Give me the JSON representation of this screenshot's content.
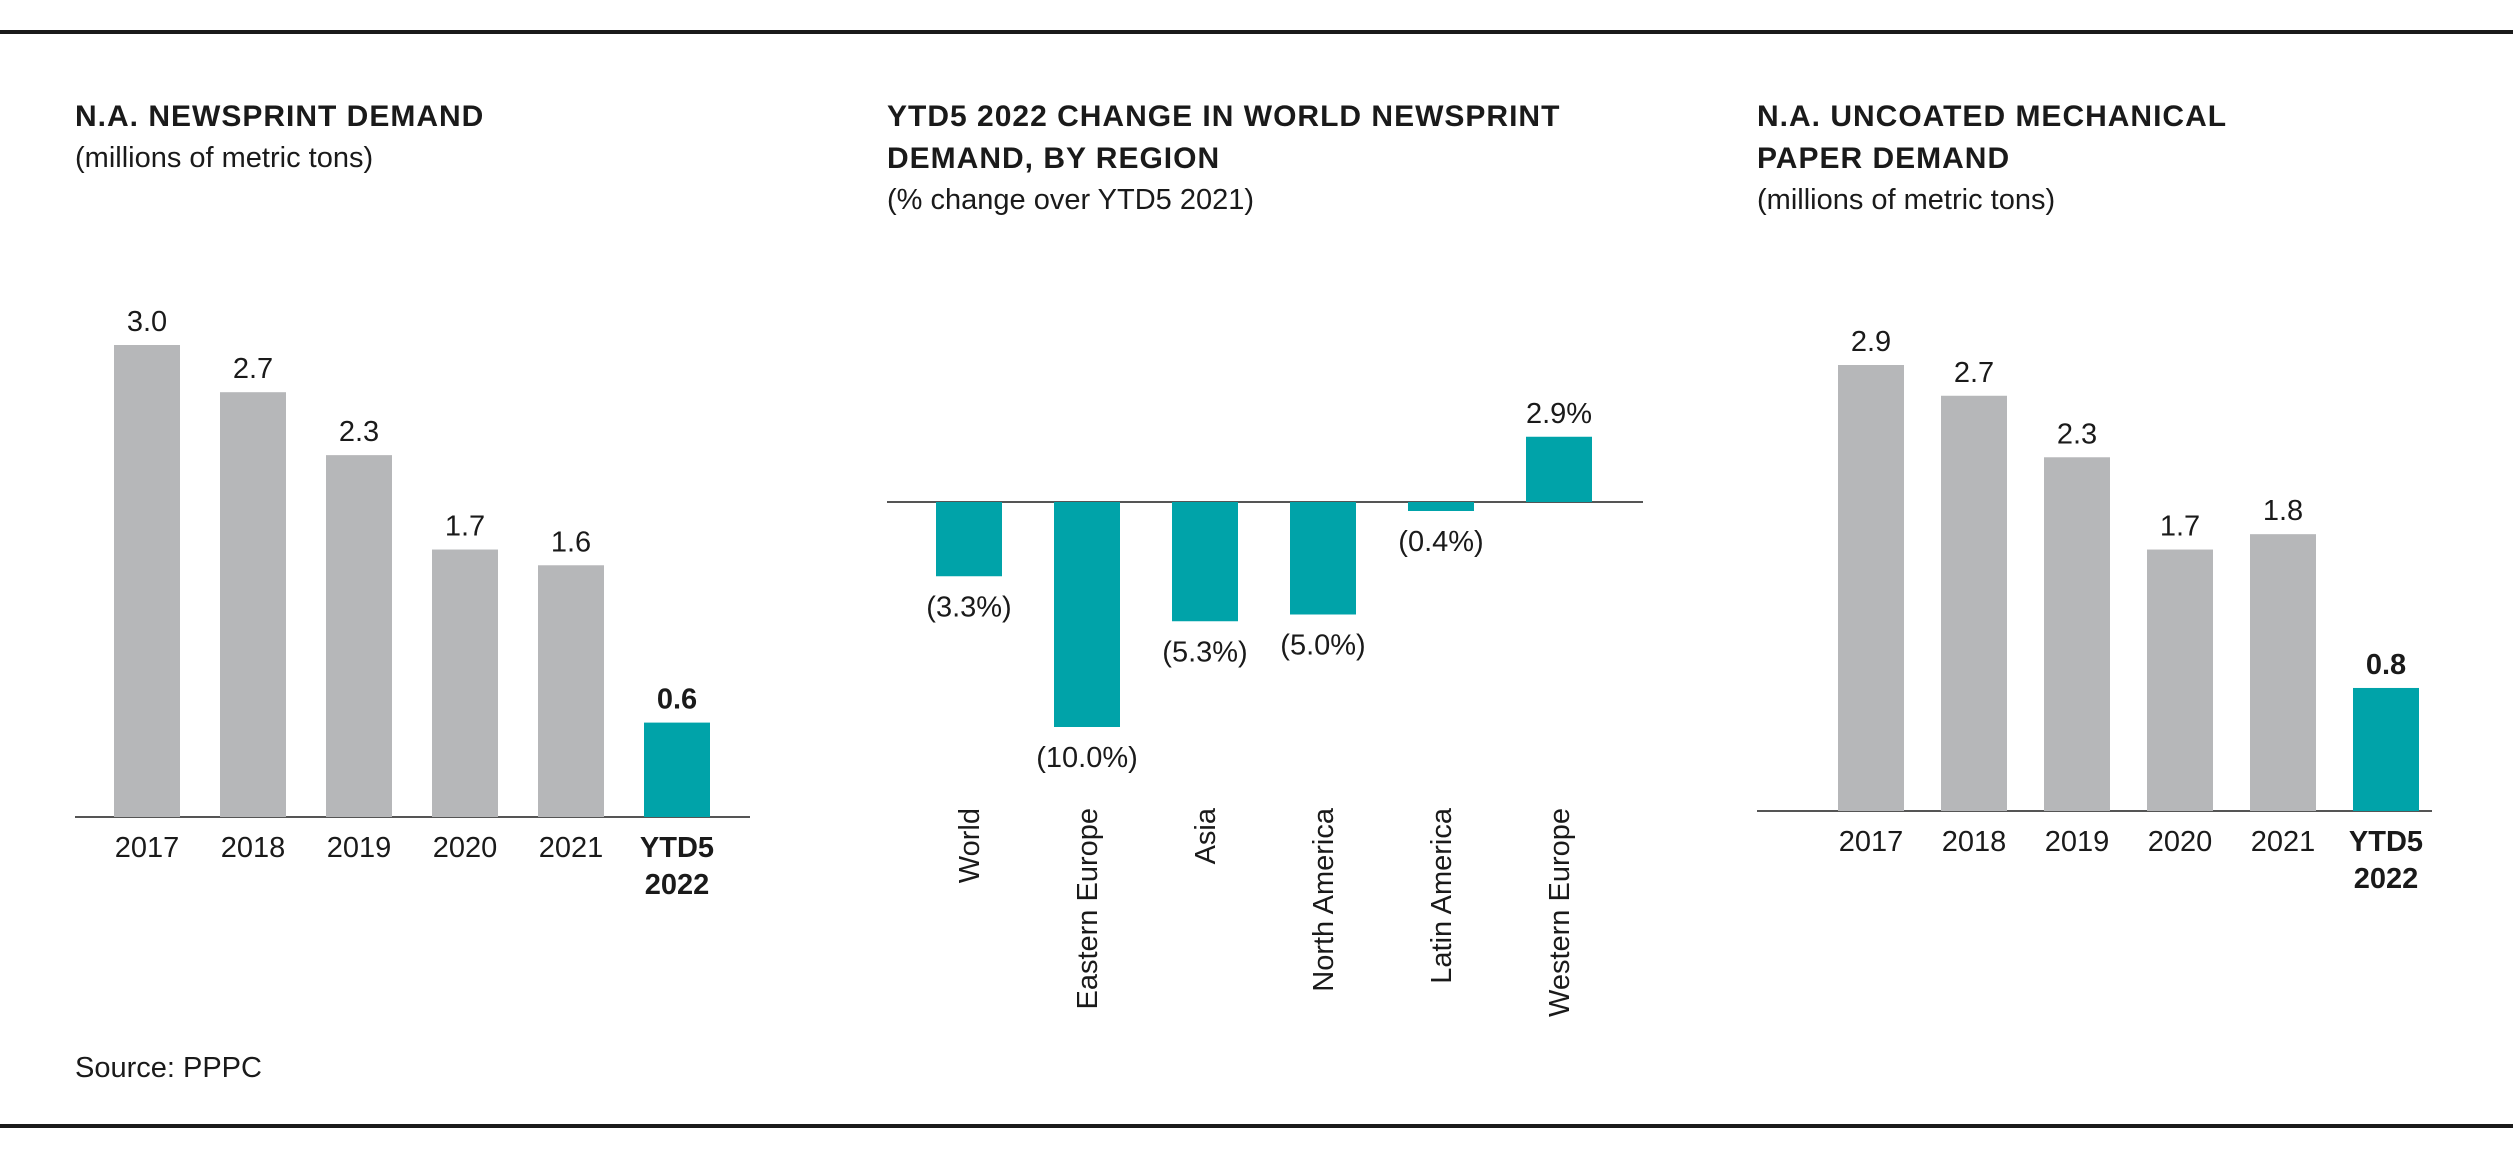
{
  "source": "Source: PPPC",
  "colors": {
    "gray": "#b6b7b9",
    "teal": "#00a3a9",
    "axis": "#555555"
  },
  "chart_data": [
    {
      "type": "bar",
      "title_lines": [
        "N.A. NEWSPRINT DEMAND"
      ],
      "subtitle": "(millions of metric tons)",
      "categories": [
        [
          "2017"
        ],
        [
          "2018"
        ],
        [
          "2019"
        ],
        [
          "2020"
        ],
        [
          "2021"
        ],
        [
          "YTD5",
          "2022"
        ]
      ],
      "values": [
        3.0,
        2.7,
        2.3,
        1.7,
        1.6,
        0.6
      ],
      "labels": [
        "3.0",
        "2.7",
        "2.3",
        "1.7",
        "1.6",
        "0.6"
      ],
      "highlight_index": 5,
      "ylim": [
        0,
        3.0
      ]
    },
    {
      "type": "bar",
      "title_lines": [
        "YTD5 2022 CHANGE IN WORLD NEWSPRINT",
        "DEMAND, BY REGION"
      ],
      "subtitle": "(% change over YTD5 2021)",
      "categories": [
        "World",
        "Eastern Europe",
        "Asia",
        "North America",
        "Latin America",
        "Western Europe"
      ],
      "values": [
        -3.3,
        -10.0,
        -5.3,
        -5.0,
        -0.4,
        2.9
      ],
      "labels": [
        "(3.3%)",
        "(10.0%)",
        "(5.3%)",
        "(5.0%)",
        "(0.4%)",
        "2.9%"
      ],
      "ylim": [
        -10.0,
        2.9
      ]
    },
    {
      "type": "bar",
      "title_lines": [
        "N.A. UNCOATED MECHANICAL",
        "PAPER DEMAND"
      ],
      "subtitle": "(millions of metric tons)",
      "categories": [
        [
          "2017"
        ],
        [
          "2018"
        ],
        [
          "2019"
        ],
        [
          "2020"
        ],
        [
          "2021"
        ],
        [
          "YTD5",
          "2022"
        ]
      ],
      "values": [
        2.9,
        2.7,
        2.3,
        1.7,
        1.8,
        0.8
      ],
      "labels": [
        "2.9",
        "2.7",
        "2.3",
        "1.7",
        "1.8",
        "0.8"
      ],
      "highlight_index": 5,
      "ylim": [
        0,
        2.9
      ]
    }
  ]
}
